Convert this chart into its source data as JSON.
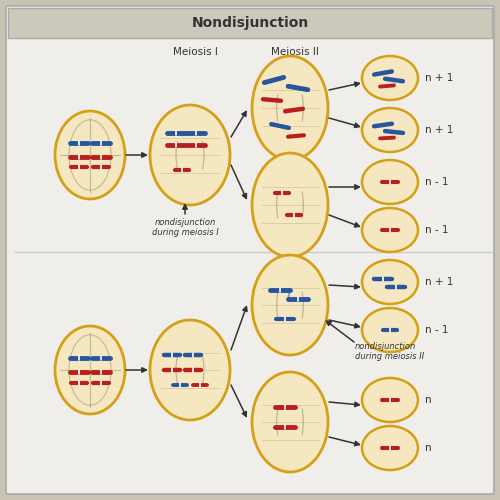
{
  "title": "Nondisjunction",
  "title_bg": "#cdc8bc",
  "bg_color": "#c8c3b5",
  "panel_bg": "#f0eeea",
  "cell_fill": "#f5e8c0",
  "cell_edge": "#d4a017",
  "spindle_color": "#b8a888",
  "chr_blue": "#2855a0",
  "chr_red": "#b82020",
  "text_color": "#333333",
  "label_meiosis1": "Meiosis I",
  "label_meiosis2": "Meiosis II",
  "label_ndm1": "nondisjunction\nduring meiosis I",
  "label_ndm2": "nondisjunction\nduring meiosis II",
  "results_top": [
    "n + 1",
    "n + 1",
    "n - 1",
    "n - 1"
  ],
  "results_bot": [
    "n + 1",
    "n - 1",
    "n",
    "n"
  ]
}
